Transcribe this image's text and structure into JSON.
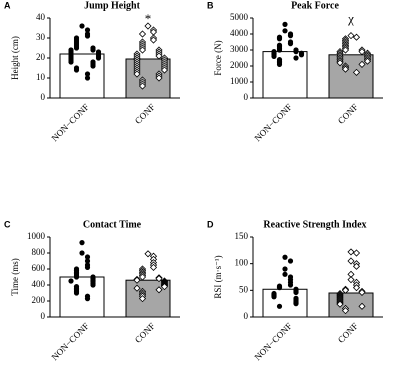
{
  "chart_data": [
    {
      "type": "bar",
      "panel": "A",
      "title": "Jump Height",
      "y_label": "Height (cm)",
      "annotation": "*",
      "categories": [
        "NON−CONF",
        "CONF"
      ],
      "values": [
        22,
        19.5
      ],
      "bar_colors": [
        "#ffffff",
        "#a6a6a6"
      ],
      "ylim": [
        0,
        40
      ],
      "yticks": [
        0,
        10,
        20,
        30,
        40
      ],
      "points": [
        [
          36,
          34,
          32,
          31,
          30,
          29,
          28,
          27,
          26,
          25,
          25,
          24,
          24,
          23,
          23,
          22,
          22,
          21,
          21,
          20,
          20,
          19,
          18,
          18,
          17,
          16,
          15,
          14,
          12,
          10
        ],
        [
          36,
          34,
          33,
          32,
          30,
          29,
          28,
          27,
          26,
          25,
          24,
          24,
          23,
          22,
          22,
          21,
          21,
          20,
          20,
          19,
          19,
          18,
          18,
          17,
          17,
          16,
          16,
          15,
          15,
          14,
          14,
          13,
          12,
          12,
          11,
          10,
          9,
          8,
          7,
          6
        ]
      ]
    },
    {
      "type": "bar",
      "panel": "B",
      "title": "Peak Force",
      "y_label": "Force (N)",
      "annotation": "χ",
      "categories": [
        "NON−CONF",
        "CONF"
      ],
      "values": [
        2900,
        2700
      ],
      "bar_colors": [
        "#ffffff",
        "#a6a6a6"
      ],
      "ylim": [
        0,
        5000
      ],
      "yticks": [
        0,
        1000,
        2000,
        3000,
        4000,
        5000
      ],
      "points": [
        [
          4600,
          4200,
          4000,
          3900,
          3800,
          3700,
          3500,
          3400,
          3300,
          3200,
          3100,
          3000,
          3000,
          2900,
          2900,
          2800,
          2800,
          2700,
          2700,
          2600,
          2500,
          2400,
          2300,
          2200,
          2100
        ],
        [
          3900,
          3800,
          3700,
          3600,
          3500,
          3400,
          3300,
          3200,
          3100,
          3000,
          3000,
          2900,
          2900,
          2800,
          2800,
          2700,
          2700,
          2600,
          2600,
          2500,
          2500,
          2400,
          2400,
          2300,
          2300,
          2200,
          2100,
          2000,
          1900,
          1800,
          1600
        ]
      ]
    },
    {
      "type": "bar",
      "panel": "C",
      "title": "Contact Time",
      "y_label": "Time (ms)",
      "categories": [
        "NON−CONF",
        "CONF"
      ],
      "values": [
        500,
        460
      ],
      "bar_colors": [
        "#ffffff",
        "#a6a6a6"
      ],
      "ylim": [
        0,
        1000
      ],
      "yticks": [
        0,
        200,
        400,
        600,
        800,
        1000
      ],
      "points": [
        [
          930,
          800,
          750,
          700,
          650,
          620,
          600,
          580,
          560,
          540,
          520,
          500,
          500,
          480,
          460,
          450,
          440,
          420,
          400,
          380,
          360,
          340,
          320,
          300,
          260,
          230
        ],
        [
          790,
          760,
          720,
          680,
          650,
          620,
          600,
          580,
          560,
          540,
          520,
          500,
          490,
          480,
          470,
          460,
          450,
          440,
          430,
          420,
          410,
          400,
          390,
          380,
          360,
          340,
          320,
          300,
          280,
          260,
          230
        ]
      ]
    },
    {
      "type": "bar",
      "panel": "D",
      "title": "Reactive Strength Index",
      "y_label": "RSI (m·s⁻¹)",
      "categories": [
        "NON−CONF",
        "CONF"
      ],
      "values": [
        52,
        45
      ],
      "bar_colors": [
        "#ffffff",
        "#a6a6a6"
      ],
      "ylim": [
        0,
        150
      ],
      "yticks": [
        0,
        50,
        100,
        150
      ],
      "points": [
        [
          112,
          105,
          90,
          80,
          75,
          70,
          65,
          60,
          58,
          55,
          52,
          50,
          48,
          46,
          44,
          42,
          40,
          38,
          35,
          32,
          30,
          28,
          25,
          20
        ],
        [
          122,
          120,
          105,
          100,
          95,
          80,
          70,
          65,
          60,
          55,
          52,
          50,
          48,
          46,
          44,
          42,
          40,
          38,
          36,
          34,
          32,
          30,
          28,
          26,
          24,
          20,
          16,
          12
        ]
      ]
    }
  ]
}
